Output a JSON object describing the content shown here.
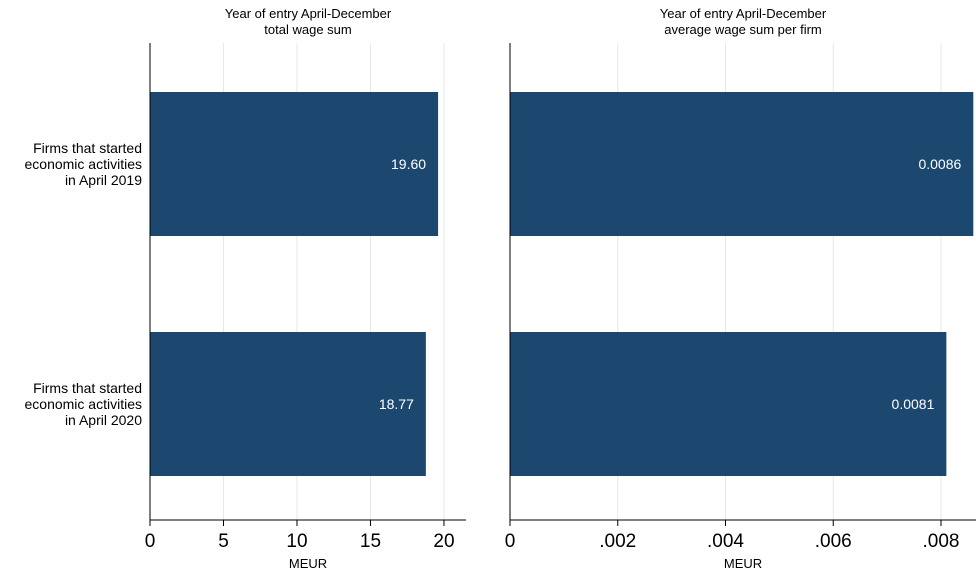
{
  "colors": {
    "bar": "#1c4870",
    "grid": "#e8e8e8",
    "axis": "#000000",
    "label_on_bar": "#ffffff"
  },
  "chart_data": [
    {
      "type": "bar",
      "orientation": "horizontal",
      "title_line1": "Year of entry April-December",
      "title_line2": "total wage sum",
      "xlabel": "MEUR",
      "xlim": [
        0,
        21.5
      ],
      "ticks": [
        0,
        5,
        10,
        15,
        20
      ],
      "tick_labels": [
        "0",
        "5",
        "10",
        "15",
        "20"
      ],
      "grid": true,
      "categories": [
        [
          "Firms that started",
          "economic activities",
          "in April 2019"
        ],
        [
          "Firms that started",
          "economic activities",
          "in April 2020"
        ]
      ],
      "values": [
        19.6,
        18.77
      ],
      "value_labels": [
        "19.60",
        "18.77"
      ]
    },
    {
      "type": "bar",
      "orientation": "horizontal",
      "title_line1": "Year of entry April-December",
      "title_line2": "average wage sum per firm",
      "xlabel": "MEUR",
      "xlim": [
        0,
        0.00865
      ],
      "ticks": [
        0,
        0.002,
        0.004,
        0.006,
        0.008
      ],
      "tick_labels": [
        "0",
        ".002",
        ".004",
        ".006",
        ".008"
      ],
      "grid": true,
      "categories": [
        [
          "Firms that started",
          "economic activities",
          "in April 2019"
        ],
        [
          "Firms that started",
          "economic activities",
          "in April 2020"
        ]
      ],
      "values": [
        0.0086,
        0.0081
      ],
      "value_labels": [
        "0.0086",
        "0.0081"
      ]
    }
  ]
}
